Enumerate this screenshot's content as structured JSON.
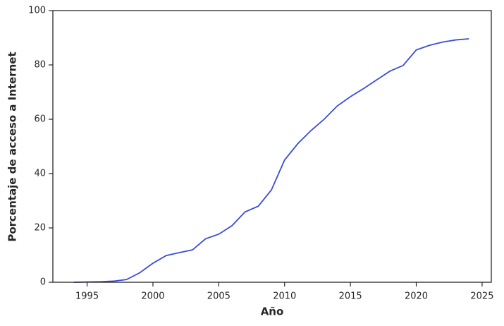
{
  "chart_data": {
    "type": "line",
    "xlabel": "Año",
    "ylabel": "Porcentaje de acceso a Internet",
    "x": [
      1994,
      1995,
      1996,
      1997,
      1998,
      1999,
      2000,
      2001,
      2002,
      2003,
      2004,
      2005,
      2006,
      2007,
      2008,
      2009,
      2010,
      2011,
      2012,
      2013,
      2014,
      2015,
      2016,
      2017,
      2018,
      2019,
      2020,
      2021,
      2022,
      2023,
      2024
    ],
    "series": [
      {
        "name": "Acceso a Internet",
        "color": "#3b4cd8",
        "values": [
          0,
          0.1,
          0.2,
          0.4,
          1,
          3.5,
          7,
          9.8,
          10.9,
          11.9,
          16,
          17.7,
          20.8,
          25.9,
          28,
          34,
          45,
          51,
          55.8,
          60,
          64.9,
          68.3,
          71.3,
          74.5,
          77.7,
          79.8,
          85.5,
          87.2,
          88.4,
          89.2,
          89.6
        ]
      }
    ],
    "xlim": [
      1992.4,
      2025.7
    ],
    "xticks": [
      1995,
      2000,
      2005,
      2010,
      2015,
      2020,
      2025
    ],
    "ylim": [
      0,
      100
    ],
    "yticks": [
      0,
      20,
      40,
      60,
      80,
      100
    ]
  }
}
